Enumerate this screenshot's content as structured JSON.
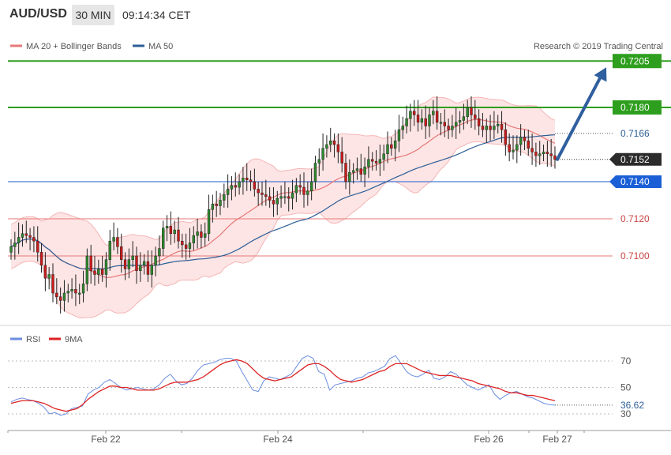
{
  "header": {
    "symbol": "AUD/USD",
    "timeframe": "30 MIN",
    "time": "09:14:34 CET"
  },
  "legend": {
    "ma20": "MA 20 + Bollinger Bands",
    "ma50": "MA 50",
    "research": "Research © 2019 Trading Central",
    "rsi": "RSI",
    "ma9": "9MA"
  },
  "colors": {
    "resistance": "#2e9e1e",
    "support": "#e87878",
    "pivot": "#1a5fd6",
    "ma20_band": "#fde0e0",
    "ma50": "#2d5e96",
    "arrow": "#2f5f9e",
    "candle_up": "#2e8a2e",
    "candle_down": "#cc1a1a",
    "rsi": "#6b8ee0",
    "rsi_ma": "#dd2222"
  },
  "chart_data": [
    {
      "type": "candlestick",
      "y_ticks": [
        "0.7100",
        "0.7120",
        "0.7140",
        "0.7166",
        "0.7180",
        "0.7205"
      ],
      "levels": [
        {
          "label": "0.7205",
          "value": 0.7205,
          "kind": "resistance"
        },
        {
          "label": "0.7180",
          "value": 0.718,
          "kind": "resistance"
        },
        {
          "label": "0.7166",
          "value": 0.7166,
          "kind": "dotted"
        },
        {
          "label": "0.7152",
          "value": 0.7152,
          "kind": "current"
        },
        {
          "label": "0.7140",
          "value": 0.714,
          "kind": "pivot"
        },
        {
          "label": "0.7120",
          "value": 0.712,
          "kind": "support"
        },
        {
          "label": "0.7100",
          "value": 0.71,
          "kind": "support"
        }
      ],
      "x_ticks": [
        "Feb 22",
        "Feb 24",
        "Feb 26",
        "Feb 27"
      ],
      "last_price": 0.7152,
      "target": 0.7205,
      "close_path": [
        0.7105,
        0.7107,
        0.711,
        0.7112,
        0.7111,
        0.711,
        0.7108,
        0.7102,
        0.7095,
        0.7088,
        0.709,
        0.708,
        0.7078,
        0.7076,
        0.708,
        0.7081,
        0.7082,
        0.708,
        0.708,
        0.7085,
        0.71,
        0.7092,
        0.709,
        0.7093,
        0.709,
        0.7098,
        0.7108,
        0.711,
        0.7105,
        0.7098,
        0.7093,
        0.7098,
        0.71,
        0.7092,
        0.7095,
        0.7097,
        0.709,
        0.7095,
        0.71,
        0.7104,
        0.7115,
        0.7116,
        0.7112,
        0.7114,
        0.7108,
        0.7106,
        0.7104,
        0.7107,
        0.7111,
        0.7113,
        0.711,
        0.7112,
        0.7125,
        0.7128,
        0.7127,
        0.713,
        0.7133,
        0.7136,
        0.7138,
        0.7137,
        0.714,
        0.7142,
        0.7141,
        0.714,
        0.7136,
        0.7134,
        0.7133,
        0.7132,
        0.713,
        0.7128,
        0.7131,
        0.7132,
        0.7132,
        0.7131,
        0.7134,
        0.7138,
        0.7137,
        0.7133,
        0.7135,
        0.714,
        0.715,
        0.7152,
        0.7158,
        0.716,
        0.7162,
        0.716,
        0.7156,
        0.715,
        0.714,
        0.7145,
        0.7146,
        0.7147,
        0.7144,
        0.7148,
        0.7152,
        0.7151,
        0.715,
        0.7152,
        0.7155,
        0.716,
        0.7158,
        0.7162,
        0.7168,
        0.717,
        0.7174,
        0.7178,
        0.7176,
        0.7172,
        0.7174,
        0.717,
        0.7176,
        0.7178,
        0.7172,
        0.7172,
        0.717,
        0.7168,
        0.717,
        0.7172,
        0.7173,
        0.7175,
        0.718,
        0.7176,
        0.7174,
        0.717,
        0.7168,
        0.717,
        0.7168,
        0.717,
        0.7171,
        0.7168,
        0.716,
        0.7156,
        0.7157,
        0.716,
        0.7164,
        0.7162,
        0.7158,
        0.7156,
        0.7154,
        0.7155,
        0.7156,
        0.7155,
        0.7154,
        0.7152
      ]
    },
    {
      "type": "line",
      "series": [
        {
          "name": "RSI",
          "values": [
            39,
            41,
            42,
            41,
            40,
            38,
            35,
            30,
            31,
            29,
            30,
            34,
            35,
            36,
            45,
            48,
            50,
            54,
            56,
            53,
            50,
            48,
            49,
            50,
            49,
            48,
            49,
            52,
            57,
            60,
            55,
            52,
            53,
            57,
            63,
            67,
            68,
            69,
            71,
            72,
            72,
            70,
            62,
            55,
            48,
            47,
            55,
            58,
            57,
            56,
            58,
            60,
            66,
            72,
            74,
            72,
            62,
            60,
            48,
            52,
            53,
            54,
            55,
            57,
            58,
            61,
            62,
            64,
            66,
            72,
            74,
            68,
            62,
            59,
            58,
            60,
            63,
            57,
            56,
            58,
            62,
            60,
            56,
            52,
            50,
            48,
            50,
            52,
            45,
            41,
            44,
            46,
            47,
            45,
            43,
            42,
            40,
            38,
            37,
            36.62
          ]
        },
        {
          "name": "9MA",
          "values": [
            38,
            39,
            40,
            40,
            40,
            39,
            38,
            36,
            34,
            33,
            32,
            33,
            34,
            37,
            41,
            44,
            47,
            49,
            51,
            51,
            50,
            50,
            49,
            48,
            48,
            48,
            48,
            49,
            51,
            53,
            54,
            54,
            54,
            55,
            56,
            58,
            61,
            64,
            67,
            69,
            70,
            71,
            70,
            68,
            64,
            60,
            57,
            56,
            55,
            56,
            57,
            58,
            61,
            64,
            67,
            68,
            68,
            66,
            63,
            59,
            56,
            55,
            54,
            55,
            56,
            58,
            60,
            62,
            63,
            66,
            68,
            68,
            68,
            66,
            64,
            62,
            61,
            60,
            59,
            59,
            59,
            58,
            57,
            56,
            55,
            53,
            52,
            51,
            50,
            49,
            47,
            46,
            46,
            45,
            44,
            44,
            43,
            42,
            41,
            40
          ]
        }
      ],
      "y_ticks": [
        "70",
        "50",
        "30"
      ],
      "last_label": "36.62",
      "ylim": [
        25,
        78
      ]
    }
  ]
}
